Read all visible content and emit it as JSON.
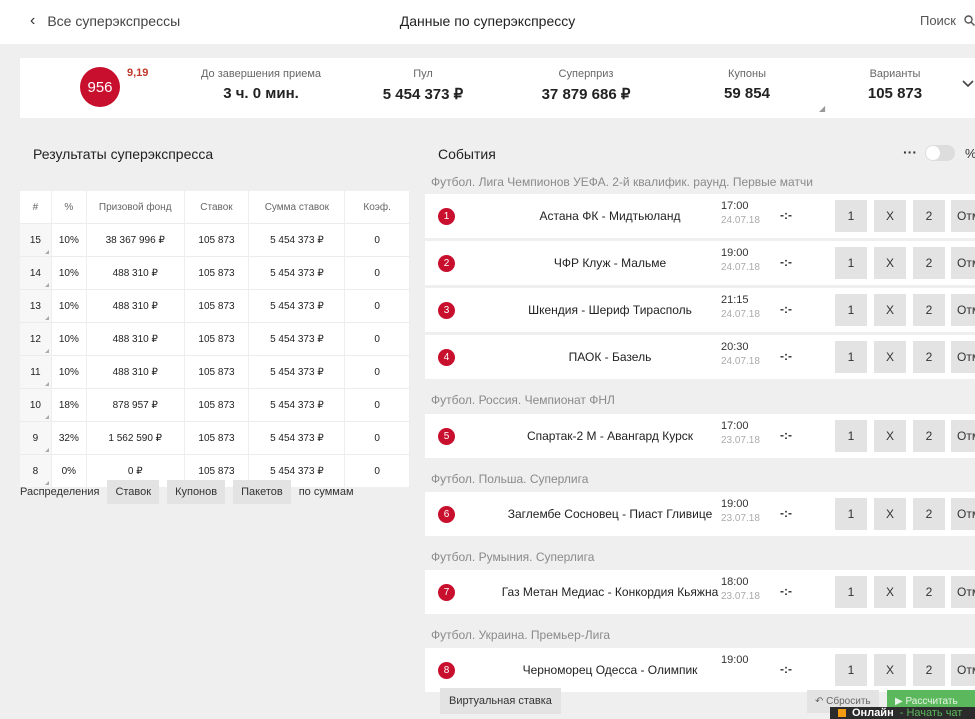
{
  "header": {
    "back_label": "Все суперэкспрессы",
    "title": "Данные по суперэкспрессу",
    "search_label": "Поиск"
  },
  "summary": {
    "badge": "956",
    "badge_small": "9,19",
    "stats": [
      {
        "label": "До завершения приема",
        "value": "3 ч. 0 мин."
      },
      {
        "label": "Пул",
        "value": "5 454 373 ₽"
      },
      {
        "label": "Суперприз",
        "value": "37 879 686 ₽"
      },
      {
        "label": "Купоны",
        "value": "59 854"
      },
      {
        "label": "Варианты",
        "value": "105 873"
      }
    ]
  },
  "results": {
    "title": "Результаты суперэкспресса",
    "columns": [
      "#",
      "%",
      "Призовой фонд",
      "Ставок",
      "Сумма ставок",
      "Коэф."
    ],
    "rows": [
      [
        "15",
        "10%",
        "38 367 996 ₽",
        "105 873",
        "5 454 373 ₽",
        "0"
      ],
      [
        "14",
        "10%",
        "488 310 ₽",
        "105 873",
        "5 454 373 ₽",
        "0"
      ],
      [
        "13",
        "10%",
        "488 310 ₽",
        "105 873",
        "5 454 373 ₽",
        "0"
      ],
      [
        "12",
        "10%",
        "488 310 ₽",
        "105 873",
        "5 454 373 ₽",
        "0"
      ],
      [
        "11",
        "10%",
        "488 310 ₽",
        "105 873",
        "5 454 373 ₽",
        "0"
      ],
      [
        "10",
        "18%",
        "878 957 ₽",
        "105 873",
        "5 454 373 ₽",
        "0"
      ],
      [
        "9",
        "32%",
        "1 562 590 ₽",
        "105 873",
        "5 454 373 ₽",
        "0"
      ],
      [
        "8",
        "0%",
        "0 ₽",
        "105 873",
        "5 454 373 ₽",
        "0"
      ]
    ],
    "distribution": {
      "label": "Распределения",
      "buttons": [
        "Ставок",
        "Купонов",
        "Пакетов"
      ],
      "suffix": "по суммам"
    }
  },
  "events": {
    "title": "События",
    "dots": "···",
    "percent_label": "%",
    "score_placeholder": "-:-",
    "outcome_labels": [
      "1",
      "X",
      "2",
      "Отм"
    ],
    "leagues": [
      "Футбол. Лига Чемпионов УЕФА. 2-й квалифик. раунд. Первые матчи",
      "Футбол. Россия. Чемпионат ФНЛ",
      "Футбол. Польша. Суперлига",
      "Футбол. Румыния. Суперлига",
      "Футбол. Украина. Премьер-Лига"
    ],
    "items": [
      {
        "num": "1",
        "teams": "Астана ФК - Мидтьюланд",
        "time": "17:00",
        "date": "24.07.18"
      },
      {
        "num": "2",
        "teams": "ЧФР Клуж - Мальме",
        "time": "19:00",
        "date": "24.07.18"
      },
      {
        "num": "3",
        "teams": "Шкендия - Шериф Тирасполь",
        "time": "21:15",
        "date": "24.07.18"
      },
      {
        "num": "4",
        "teams": "ПАОК - Базель",
        "time": "20:30",
        "date": "24.07.18"
      },
      {
        "num": "5",
        "teams": "Спартак-2 М - Авангард Курск",
        "time": "17:00",
        "date": "23.07.18"
      },
      {
        "num": "6",
        "teams": "Заглембе Сосновец - Пиаст Гливице",
        "time": "19:00",
        "date": "23.07.18"
      },
      {
        "num": "7",
        "teams": "Газ Метан Медиас - Конкордия Кьяжна",
        "time": "18:00",
        "date": "23.07.18"
      },
      {
        "num": "8",
        "teams": "Черноморец Одесса - Олимпик",
        "time": "19:00",
        "date": ""
      }
    ]
  },
  "footer": {
    "virtual_bet": "Виртуальная ставка",
    "reset": "Сбросить",
    "calc": "Рассчитать"
  },
  "chat": {
    "status": "Онлайн",
    "action": " - Начать чат"
  },
  "colors": {
    "accent": "#c8102e",
    "green": "#5cb85c"
  }
}
